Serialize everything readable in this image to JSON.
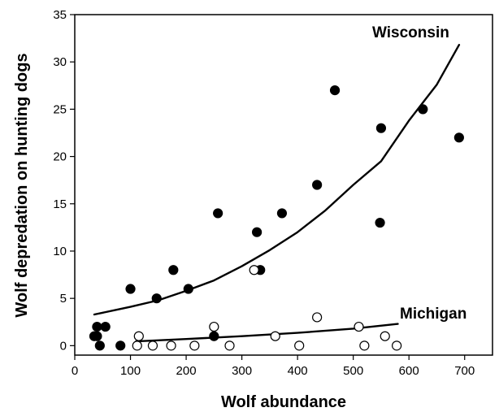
{
  "chart_data": {
    "type": "scatter",
    "title": "",
    "xlabel": "Wolf abundance",
    "ylabel": "Wolf depredation on hunting dogs",
    "xlim": [
      0,
      750
    ],
    "ylim": [
      -1,
      35
    ],
    "x_ticks": [
      0,
      100,
      200,
      300,
      400,
      500,
      600,
      700
    ],
    "y_ticks": [
      0,
      5,
      10,
      15,
      20,
      25,
      30,
      35
    ],
    "grid": false,
    "legend": "none",
    "series": [
      {
        "name": "Wisconsin",
        "marker": "filled-circle",
        "color": "#000000",
        "points": [
          [
            35,
            1
          ],
          [
            40,
            2
          ],
          [
            40,
            1
          ],
          [
            45,
            0
          ],
          [
            55,
            2
          ],
          [
            82,
            0
          ],
          [
            100,
            6
          ],
          [
            147,
            5
          ],
          [
            177,
            8
          ],
          [
            204,
            6
          ],
          [
            250,
            1
          ],
          [
            257,
            14
          ],
          [
            327,
            12
          ],
          [
            333,
            8
          ],
          [
            372,
            14
          ],
          [
            435,
            17
          ],
          [
            467,
            27
          ],
          [
            548,
            13
          ],
          [
            550,
            23
          ],
          [
            625,
            25
          ],
          [
            690,
            22
          ]
        ],
        "fit": [
          [
            35,
            3.3
          ],
          [
            100,
            4.1
          ],
          [
            150,
            4.8
          ],
          [
            200,
            5.8
          ],
          [
            250,
            6.9
          ],
          [
            300,
            8.4
          ],
          [
            350,
            10.1
          ],
          [
            400,
            12.0
          ],
          [
            450,
            14.3
          ],
          [
            500,
            17.0
          ],
          [
            550,
            19.5
          ],
          [
            600,
            23.8
          ],
          [
            650,
            27.6
          ],
          [
            690,
            31.8
          ]
        ]
      },
      {
        "name": "Michigan",
        "marker": "open-circle",
        "color": "#000000",
        "points": [
          [
            112,
            0
          ],
          [
            115,
            1
          ],
          [
            140,
            0
          ],
          [
            173,
            0
          ],
          [
            215,
            0
          ],
          [
            250,
            2
          ],
          [
            278,
            0
          ],
          [
            322,
            8
          ],
          [
            360,
            1
          ],
          [
            403,
            0
          ],
          [
            435,
            3
          ],
          [
            510,
            2
          ],
          [
            520,
            0
          ],
          [
            557,
            1
          ],
          [
            578,
            0
          ]
        ],
        "fit": [
          [
            110,
            0.45
          ],
          [
            200,
            0.7
          ],
          [
            300,
            1.0
          ],
          [
            400,
            1.35
          ],
          [
            500,
            1.8
          ],
          [
            580,
            2.3
          ]
        ]
      }
    ]
  }
}
